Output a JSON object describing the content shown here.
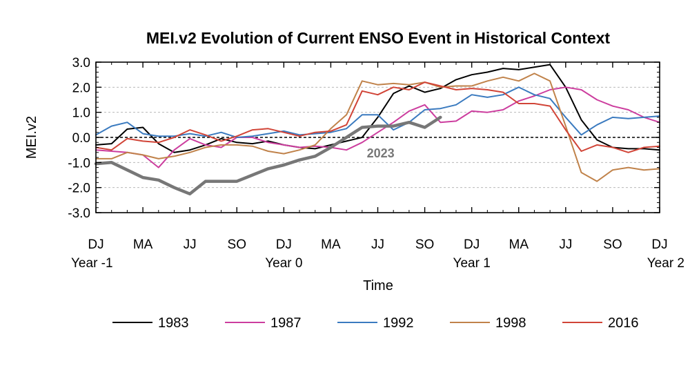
{
  "chart_data": {
    "type": "line",
    "title": "MEI.v2 Evolution of Current ENSO Event in Historical Context",
    "xlabel": "Time",
    "ylabel": "MEI.v2",
    "ylim": [
      -3.0,
      3.0
    ],
    "yticks": [
      "3.0",
      "2.0",
      "1.0",
      "0.0",
      "-1.0",
      "-2.0",
      "-3.0"
    ],
    "ytick_values": [
      3,
      2,
      1,
      0,
      -1,
      -2,
      -3
    ],
    "xlim": [
      0,
      36
    ],
    "xticks": [
      {
        "x": 0,
        "label": "DJ",
        "sub": "Year -1"
      },
      {
        "x": 3,
        "label": "MA",
        "sub": ""
      },
      {
        "x": 6,
        "label": "JJ",
        "sub": ""
      },
      {
        "x": 9,
        "label": "SO",
        "sub": ""
      },
      {
        "x": 12,
        "label": "DJ",
        "sub": "Year 0"
      },
      {
        "x": 15,
        "label": "MA",
        "sub": ""
      },
      {
        "x": 18,
        "label": "JJ",
        "sub": ""
      },
      {
        "x": 21,
        "label": "SO",
        "sub": ""
      },
      {
        "x": 24,
        "label": "DJ",
        "sub": "Year 1"
      },
      {
        "x": 27,
        "label": "MA",
        "sub": ""
      },
      {
        "x": 30,
        "label": "JJ",
        "sub": ""
      },
      {
        "x": 33,
        "label": "SO",
        "sub": ""
      },
      {
        "x": 36,
        "label": "DJ",
        "sub": "Year 2"
      }
    ],
    "grid": "dashed horizontal at ±1, ±2; zero line dashed black",
    "legend_position": "bottom",
    "series": [
      {
        "name": "1983",
        "color": "#000000",
        "values": [
          -0.3,
          -0.25,
          0.33,
          0.4,
          -0.25,
          -0.6,
          -0.5,
          -0.3,
          -0.05,
          -0.2,
          -0.25,
          -0.15,
          -0.3,
          -0.4,
          -0.45,
          -0.3,
          -0.15,
          0.0,
          0.8,
          1.75,
          2.05,
          1.8,
          1.95,
          2.3,
          2.5,
          2.6,
          2.75,
          2.7,
          2.8,
          2.9,
          2.0,
          0.7,
          -0.1,
          -0.4,
          -0.45,
          -0.45,
          -0.5
        ]
      },
      {
        "name": "1987",
        "color": "#cc3d9e",
        "values": [
          -0.5,
          -0.55,
          -0.6,
          -0.7,
          -1.2,
          -0.5,
          -0.05,
          -0.3,
          -0.4,
          0.0,
          0.0,
          -0.2,
          -0.3,
          -0.4,
          -0.35,
          -0.4,
          -0.5,
          -0.2,
          0.2,
          0.6,
          1.05,
          1.3,
          0.6,
          0.65,
          1.05,
          1.0,
          1.1,
          1.45,
          1.65,
          1.9,
          2.0,
          1.9,
          1.5,
          1.25,
          1.1,
          0.8,
          0.6
        ]
      },
      {
        "name": "1992",
        "color": "#3a7abf",
        "values": [
          0.1,
          0.45,
          0.6,
          0.15,
          0.05,
          0.05,
          0.15,
          0.05,
          0.2,
          0.0,
          0.05,
          0.15,
          0.25,
          0.1,
          0.15,
          0.2,
          0.35,
          0.9,
          0.9,
          0.3,
          0.6,
          1.1,
          1.15,
          1.3,
          1.7,
          1.6,
          1.7,
          2.0,
          1.7,
          1.55,
          0.8,
          0.1,
          0.5,
          0.8,
          0.75,
          0.8,
          0.85
        ]
      },
      {
        "name": "1998",
        "color": "#c0824a",
        "values": [
          -0.85,
          -0.85,
          -0.6,
          -0.7,
          -0.85,
          -0.75,
          -0.6,
          -0.4,
          -0.3,
          -0.3,
          -0.35,
          -0.55,
          -0.65,
          -0.5,
          -0.3,
          0.35,
          0.9,
          2.25,
          2.1,
          2.15,
          2.1,
          2.2,
          2.0,
          2.05,
          2.05,
          2.25,
          2.4,
          2.25,
          2.55,
          2.25,
          0.45,
          -1.4,
          -1.75,
          -1.3,
          -1.2,
          -1.3,
          -1.25
        ]
      },
      {
        "name": "2016",
        "color": "#d14437",
        "values": [
          -0.4,
          -0.5,
          -0.05,
          -0.15,
          -0.2,
          0.0,
          0.3,
          0.1,
          -0.15,
          0.05,
          0.3,
          0.35,
          0.2,
          0.05,
          0.2,
          0.25,
          0.5,
          1.85,
          1.7,
          2.0,
          1.9,
          2.2,
          2.05,
          1.9,
          1.95,
          1.9,
          1.8,
          1.35,
          1.35,
          1.25,
          0.3,
          -0.55,
          -0.3,
          -0.4,
          -0.6,
          -0.4,
          -0.35
        ]
      },
      {
        "name": "2023",
        "color": "#777777",
        "values": [
          -1.05,
          -1.0,
          -1.3,
          -1.6,
          -1.7,
          -2.0,
          -2.25,
          -1.75,
          -1.75,
          -1.75,
          -1.5,
          -1.25,
          -1.1,
          -0.9,
          -0.75,
          -0.4,
          0.0,
          0.4,
          0.45,
          0.45,
          0.6,
          0.4,
          0.8
        ]
      }
    ],
    "annotations": [
      {
        "text": "2023",
        "x": 17.3,
        "y": -0.8
      }
    ],
    "legend": [
      "1983",
      "1987",
      "1992",
      "1998",
      "2016"
    ]
  }
}
